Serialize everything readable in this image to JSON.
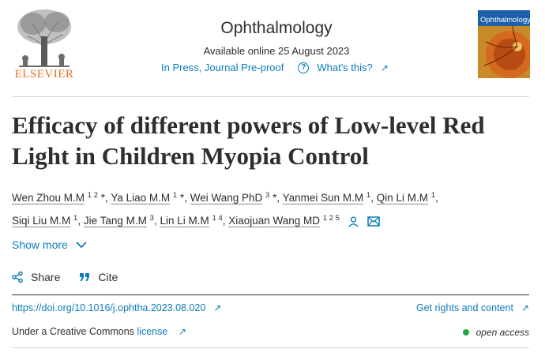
{
  "publisher": {
    "name": "ELSEVIER",
    "logo_icon": "elsevier-tree-icon"
  },
  "journal": {
    "title": "Ophthalmology",
    "available_online": "Available online 25 August 2023",
    "status_link": "In Press, Journal Pre-proof",
    "whats_this": "What's this?",
    "cover_title": "Ophthalmology"
  },
  "article": {
    "title": "Efficacy of different powers of Low-level Red Light in Children Myopia Control",
    "authors": [
      {
        "name": "Wen Zhou M.M",
        "sup": "1 2",
        "mark": "*"
      },
      {
        "name": "Ya Liao M.M",
        "sup": "1",
        "mark": "*"
      },
      {
        "name": "Wei Wang PhD",
        "sup": "3",
        "mark": "*"
      },
      {
        "name": "Yanmei Sun M.M",
        "sup": "1",
        "mark": ""
      },
      {
        "name": "Qin Li M.M",
        "sup": "1",
        "mark": ""
      },
      {
        "name": "Siqi Liu M.M",
        "sup": "1",
        "mark": ""
      },
      {
        "name": "Jie Tang M.M",
        "sup": "3",
        "mark": ""
      },
      {
        "name": "Lin Li M.M",
        "sup": "1 4",
        "mark": ""
      },
      {
        "name": "Xiaojuan Wang MD",
        "sup": "1 2 5",
        "mark": ""
      }
    ],
    "show_more": "Show more",
    "share": "Share",
    "cite": "Cite",
    "doi": "https://doi.org/10.1016/j.ophtha.2023.08.020",
    "rights": "Get rights and content",
    "license_prefix": "Under a Creative Commons ",
    "license_link": "license",
    "open_access": "open access"
  },
  "colors": {
    "link": "#0c7dbb",
    "brand": "#e9711c",
    "open_access_dot": "#29a644",
    "text": "#2e2e2e"
  }
}
